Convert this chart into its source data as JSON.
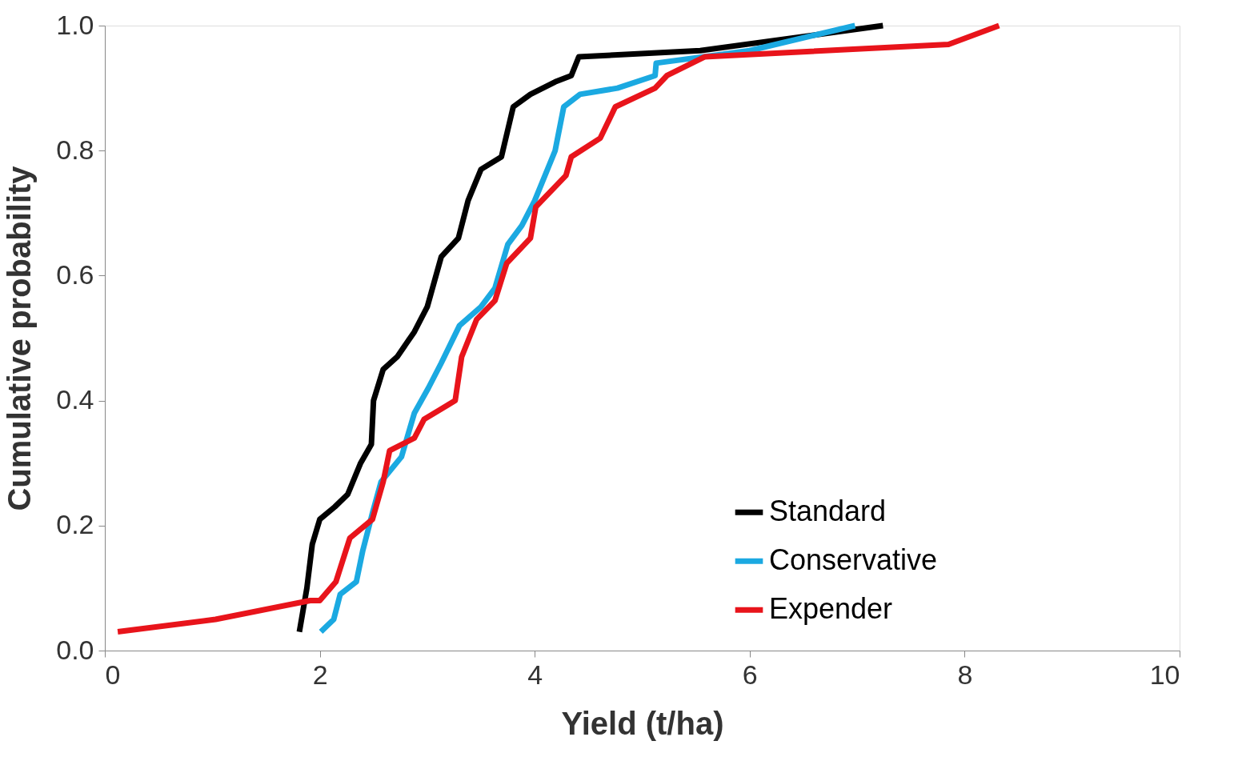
{
  "chart_data": {
    "type": "line",
    "xlabel": "Yield (t/ha)",
    "ylabel": "Cumulative probability",
    "xlim": [
      0,
      10
    ],
    "ylim": [
      0,
      1.0
    ],
    "xticks": [
      0,
      2,
      4,
      6,
      8,
      10
    ],
    "yticks": [
      {
        "value": 0,
        "label": "0.0"
      },
      0.2,
      0.4,
      0.6,
      0.8,
      {
        "value": 1,
        "label": "1.0"
      }
    ],
    "grid": false,
    "legend": "bottom right",
    "marker": "none",
    "line_style": "solid",
    "series": [
      {
        "name": "Standard",
        "color": "#000000",
        "x": [
          1.81,
          1.88,
          1.93,
          2.0,
          2.14,
          2.26,
          2.38,
          2.48,
          2.5,
          2.59,
          2.72,
          2.88,
          3.0,
          3.13,
          3.29,
          3.38,
          3.5,
          3.69,
          3.8,
          3.96,
          4.19,
          4.34,
          4.41,
          5.54,
          6.39,
          7.24
        ],
        "values": [
          0.03,
          0.1,
          0.17,
          0.21,
          0.23,
          0.25,
          0.3,
          0.33,
          0.4,
          0.45,
          0.47,
          0.51,
          0.55,
          0.63,
          0.66,
          0.72,
          0.77,
          0.79,
          0.87,
          0.89,
          0.91,
          0.92,
          0.95,
          0.96,
          0.98,
          1.0
        ]
      },
      {
        "name": "Conservative",
        "color": "#1ba9e1",
        "x": [
          2.01,
          2.13,
          2.19,
          2.34,
          2.4,
          2.49,
          2.57,
          2.76,
          2.88,
          3.01,
          3.13,
          3.3,
          3.5,
          3.63,
          3.75,
          3.88,
          4.0,
          4.19,
          4.27,
          4.42,
          4.77,
          5.12,
          5.13,
          6.0,
          6.98
        ],
        "values": [
          0.03,
          0.05,
          0.09,
          0.11,
          0.16,
          0.22,
          0.27,
          0.31,
          0.38,
          0.42,
          0.46,
          0.52,
          0.55,
          0.58,
          0.65,
          0.68,
          0.72,
          0.8,
          0.87,
          0.89,
          0.9,
          0.92,
          0.94,
          0.96,
          1.0
        ]
      },
      {
        "name": "Expender",
        "color": "#e8141b",
        "x": [
          0.12,
          1.03,
          1.91,
          2.0,
          2.15,
          2.28,
          2.49,
          2.59,
          2.65,
          2.88,
          2.97,
          3.26,
          3.32,
          3.46,
          3.63,
          3.74,
          3.96,
          4.01,
          4.29,
          4.34,
          4.61,
          4.75,
          5.12,
          5.23,
          5.58,
          7.85,
          8.32
        ],
        "values": [
          0.03,
          0.05,
          0.08,
          0.08,
          0.11,
          0.18,
          0.21,
          0.27,
          0.32,
          0.34,
          0.37,
          0.4,
          0.47,
          0.53,
          0.56,
          0.62,
          0.66,
          0.71,
          0.76,
          0.79,
          0.82,
          0.87,
          0.9,
          0.92,
          0.95,
          0.97,
          1.0
        ]
      }
    ]
  }
}
